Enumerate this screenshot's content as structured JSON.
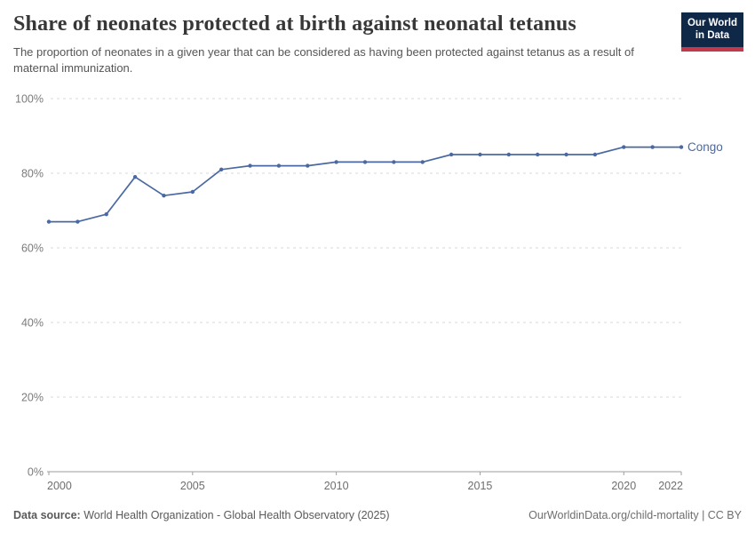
{
  "header": {
    "title": "Share of neonates protected at birth against neonatal tetanus",
    "subtitle": "The proportion of neonates in a given year that can be considered as having been protected against tetanus as a result of maternal immunization.",
    "logo": {
      "line1": "Our World",
      "line2": "in Data",
      "bg_color": "#102848",
      "accent_color": "#c2384c"
    }
  },
  "chart_data": {
    "type": "line",
    "title": "Share of neonates protected at birth against neonatal tetanus",
    "xlabel": "",
    "ylabel": "",
    "xlim": [
      2000,
      2022
    ],
    "ylim": [
      0,
      100
    ],
    "grid": "horizontal-dashed",
    "legend_position": "end-of-line",
    "x_ticks": [
      2000,
      2005,
      2010,
      2015,
      2020,
      2022
    ],
    "y_ticks": [
      0,
      20,
      40,
      60,
      80,
      100
    ],
    "y_tick_suffix": "%",
    "series": [
      {
        "name": "Congo",
        "color": "#4a69a2",
        "x": [
          2000,
          2001,
          2002,
          2003,
          2004,
          2005,
          2006,
          2007,
          2008,
          2009,
          2010,
          2011,
          2012,
          2013,
          2014,
          2015,
          2016,
          2017,
          2018,
          2019,
          2020,
          2021,
          2022
        ],
        "values": [
          67,
          67,
          69,
          79,
          74,
          75,
          81,
          82,
          82,
          82,
          83,
          83,
          83,
          83,
          85,
          85,
          85,
          85,
          85,
          85,
          87,
          87,
          87
        ]
      }
    ]
  },
  "footer": {
    "source_label": "Data source:",
    "source_text": " World Health Organization - Global Health Observatory (2025)",
    "attribution": "OurWorldinData.org/child-mortality | CC BY"
  }
}
